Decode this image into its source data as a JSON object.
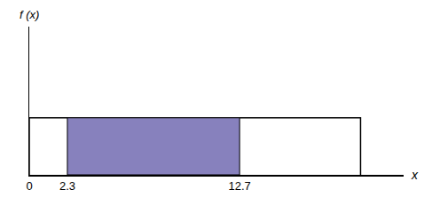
{
  "chart_data": {
    "type": "area",
    "x_label": "x",
    "y_label": "f (x)",
    "x": [
      0,
      20
    ],
    "values": [
      0.05,
      0.05
    ],
    "color": "#ffffff",
    "shaded_region": {
      "x": [
        2.3,
        12.7
      ],
      "color": "#8781bd"
    },
    "xlim": [
      0,
      22.6
    ],
    "xticks": [
      0,
      2.3,
      12.7
    ],
    "ylim": [
      0,
      0.13
    ],
    "yticks": [],
    "tick_labels": "x",
    "grid": false
  }
}
